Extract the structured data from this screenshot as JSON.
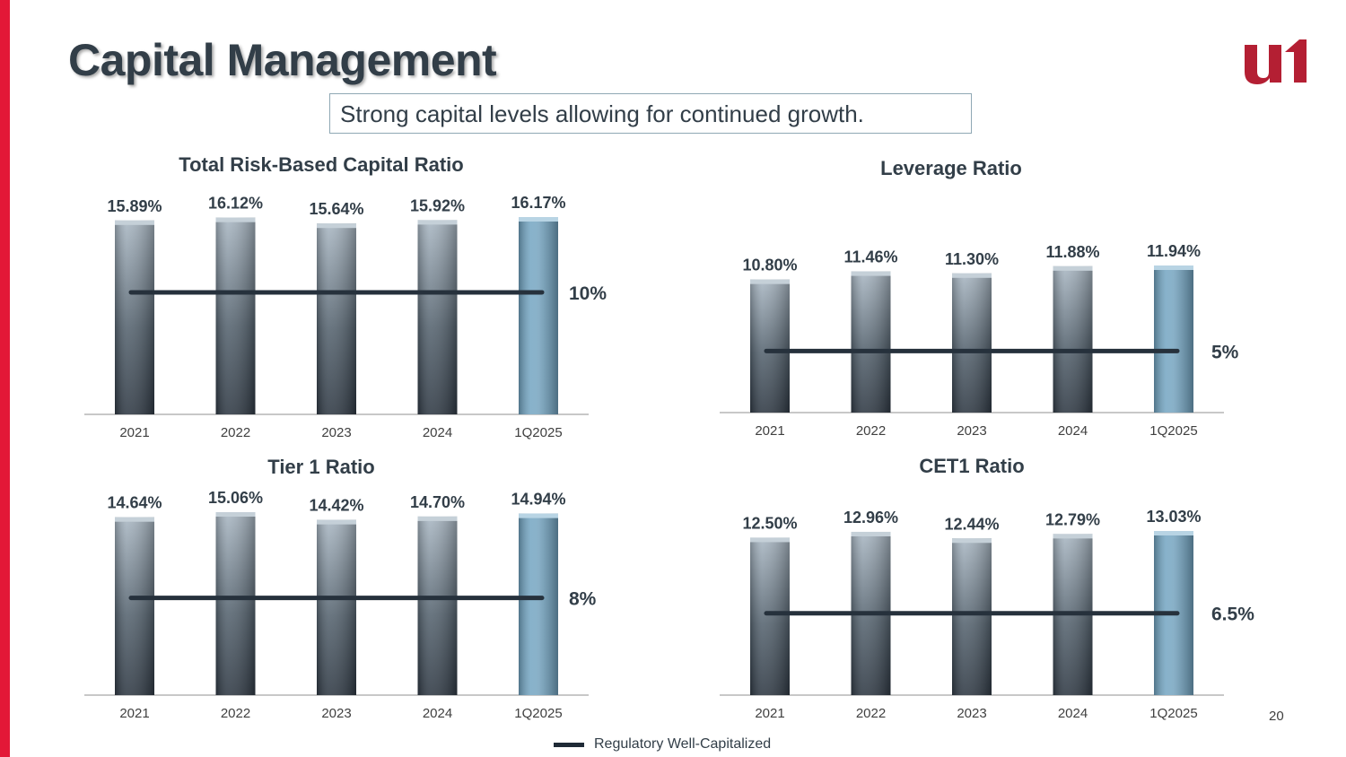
{
  "header": {
    "title": "Capital Management",
    "subtitle": "Strong capital levels allowing for continued growth."
  },
  "logo": {
    "name": "u1-logo",
    "color": "#b41f33"
  },
  "colors": {
    "accent": "#e31837",
    "bar_dark": "#2e3843",
    "bar_light": "#a9b7c3",
    "bar_highlight": "#7fafcb",
    "threshold_line": "#26313c"
  },
  "legend": {
    "label": "Regulatory Well-Capitalized"
  },
  "page_number": "20",
  "chart_data": [
    {
      "id": "total-risk-based",
      "type": "bar",
      "title": "Total Risk-Based Capital Ratio",
      "categories": [
        "2021",
        "2022",
        "2023",
        "2024",
        "1Q2025"
      ],
      "values": [
        15.89,
        16.12,
        15.64,
        15.92,
        16.17
      ],
      "labels": [
        "15.89%",
        "16.12%",
        "15.64%",
        "15.92%",
        "16.17%"
      ],
      "highlight_index": 4,
      "threshold": {
        "value": 10,
        "label": "10%"
      },
      "ylim": [
        0,
        16.17
      ]
    },
    {
      "id": "leverage",
      "type": "bar",
      "title": "Leverage Ratio",
      "categories": [
        "2021",
        "2022",
        "2023",
        "2024",
        "1Q2025"
      ],
      "values": [
        10.8,
        11.46,
        11.3,
        11.88,
        11.94
      ],
      "labels": [
        "10.80%",
        "11.46%",
        "11.30%",
        "11.88%",
        "11.94%"
      ],
      "highlight_index": 4,
      "threshold": {
        "value": 5,
        "label": "5%"
      },
      "ylim": [
        0,
        11.94
      ]
    },
    {
      "id": "tier1",
      "type": "bar",
      "title": "Tier 1 Ratio",
      "categories": [
        "2021",
        "2022",
        "2023",
        "2024",
        "1Q2025"
      ],
      "values": [
        14.64,
        15.06,
        14.42,
        14.7,
        14.94
      ],
      "labels": [
        "14.64%",
        "15.06%",
        "14.42%",
        "14.70%",
        "14.94%"
      ],
      "highlight_index": 4,
      "threshold": {
        "value": 8,
        "label": "8%"
      },
      "ylim": [
        0,
        15.06
      ]
    },
    {
      "id": "cet1",
      "type": "bar",
      "title": "CET1 Ratio",
      "categories": [
        "2021",
        "2022",
        "2023",
        "2024",
        "1Q2025"
      ],
      "values": [
        12.5,
        12.96,
        12.44,
        12.79,
        13.03
      ],
      "labels": [
        "12.50%",
        "12.96%",
        "12.44%",
        "12.79%",
        "13.03%"
      ],
      "highlight_index": 4,
      "threshold": {
        "value": 6.5,
        "label": "6.5%"
      },
      "ylim": [
        0,
        13.03
      ]
    }
  ]
}
